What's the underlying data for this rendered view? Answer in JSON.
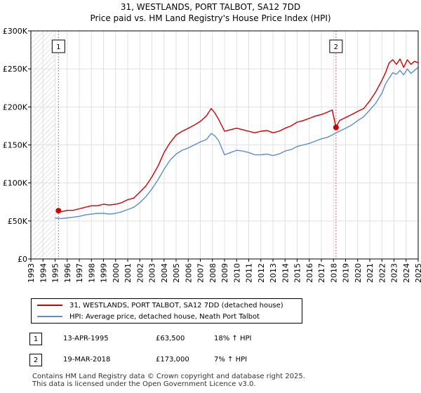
{
  "header": {
    "title_line1": "31, WESTLANDS, PORT TALBOT, SA12 7DD",
    "title_line2": "Price paid vs. HM Land Registry's House Price Index (HPI)"
  },
  "legend": {
    "items": [
      {
        "label": "31, WESTLANDS, PORT TALBOT, SA12 7DD (detached house)",
        "color": "#cc0000"
      },
      {
        "label": "HPI: Average price, detached house, Neath Port Talbot",
        "color": "#5b8dc9"
      }
    ]
  },
  "sales": [
    {
      "num": "1",
      "date": "13-APR-1995",
      "price": "£63,500",
      "hpi": "18% ↑ HPI"
    },
    {
      "num": "2",
      "date": "19-MAR-2018",
      "price": "£173,000",
      "hpi": "7% ↑ HPI"
    }
  ],
  "footer": {
    "line1": "Contains HM Land Registry data © Crown copyright and database right 2025.",
    "line2": "This data is licensed under the Open Government Licence v3.0."
  },
  "chart_data": {
    "type": "line",
    "title": "31, WESTLANDS, PORT TALBOT, SA12 7DD — Price paid vs. HM Land Registry's House Price Index (HPI)",
    "xlim": [
      1993,
      2025
    ],
    "ylim": [
      0,
      300000
    ],
    "x_ticks": [
      "1993",
      "1994",
      "1995",
      "1996",
      "1997",
      "1998",
      "1999",
      "2000",
      "2001",
      "2002",
      "2003",
      "2004",
      "2005",
      "2006",
      "2007",
      "2008",
      "2009",
      "2010",
      "2011",
      "2012",
      "2013",
      "2014",
      "2015",
      "2016",
      "2017",
      "2018",
      "2019",
      "2020",
      "2021",
      "2022",
      "2023",
      "2024",
      "2025"
    ],
    "y_ticks": [
      {
        "value": 0,
        "label": "£0"
      },
      {
        "value": 50000,
        "label": "£50K"
      },
      {
        "value": 100000,
        "label": "£100K"
      },
      {
        "value": 150000,
        "label": "£150K"
      },
      {
        "value": 200000,
        "label": "£200K"
      },
      {
        "value": 250000,
        "label": "£250K"
      },
      {
        "value": 300000,
        "label": "£300K"
      }
    ],
    "hatch_until": 1995.0,
    "grid": true,
    "series": [
      {
        "name": "31, WESTLANDS, PORT TALBOT, SA12 7DD (detached house)",
        "color": "#cc0000",
        "x": [
          1995.28,
          1995.5,
          1996.0,
          1996.5,
          1997.0,
          1997.5,
          1998.0,
          1998.5,
          1999.0,
          1999.5,
          2000.0,
          2000.5,
          2001.0,
          2001.5,
          2002.0,
          2002.5,
          2003.0,
          2003.5,
          2004.0,
          2004.5,
          2005.0,
          2005.5,
          2006.0,
          2006.5,
          2007.0,
          2007.5,
          2007.9,
          2008.2,
          2008.5,
          2009.0,
          2009.5,
          2010.0,
          2010.5,
          2011.0,
          2011.5,
          2012.0,
          2012.5,
          2013.0,
          2013.5,
          2014.0,
          2014.5,
          2015.0,
          2015.5,
          2016.0,
          2016.5,
          2017.0,
          2017.5,
          2017.9,
          2018.21,
          2018.5,
          2019.0,
          2019.5,
          2020.0,
          2020.5,
          2021.0,
          2021.5,
          2022.0,
          2022.3,
          2022.6,
          2022.9,
          2023.2,
          2023.5,
          2023.8,
          2024.1,
          2024.4,
          2024.7,
          2025.0
        ],
        "y": [
          63500,
          62000,
          64000,
          64000,
          66000,
          68000,
          70000,
          70000,
          72000,
          71000,
          72000,
          74000,
          78000,
          80000,
          88000,
          96000,
          108000,
          122000,
          140000,
          153000,
          163000,
          168000,
          172000,
          176000,
          181000,
          188000,
          198000,
          192000,
          184000,
          168000,
          170000,
          172000,
          170000,
          168000,
          166000,
          168000,
          169000,
          166000,
          168000,
          172000,
          175000,
          180000,
          182000,
          185000,
          188000,
          190000,
          193000,
          196000,
          173000,
          182000,
          186000,
          190000,
          194000,
          198000,
          208000,
          220000,
          235000,
          245000,
          258000,
          262000,
          256000,
          263000,
          252000,
          262000,
          256000,
          260000,
          258000
        ]
      },
      {
        "name": "HPI: Average price, detached house, Neath Port Talbot",
        "color": "#5b8dc9",
        "x": [
          1995.0,
          1995.5,
          1996.0,
          1996.5,
          1997.0,
          1997.5,
          1998.0,
          1998.5,
          1999.0,
          1999.5,
          2000.0,
          2000.5,
          2001.0,
          2001.5,
          2002.0,
          2002.5,
          2003.0,
          2003.5,
          2004.0,
          2004.5,
          2005.0,
          2005.5,
          2006.0,
          2006.5,
          2007.0,
          2007.5,
          2007.9,
          2008.2,
          2008.5,
          2009.0,
          2009.5,
          2010.0,
          2010.5,
          2011.0,
          2011.5,
          2012.0,
          2012.5,
          2013.0,
          2013.5,
          2014.0,
          2014.5,
          2015.0,
          2015.5,
          2016.0,
          2016.5,
          2017.0,
          2017.5,
          2018.0,
          2018.5,
          2019.0,
          2019.5,
          2020.0,
          2020.5,
          2021.0,
          2021.5,
          2022.0,
          2022.3,
          2022.6,
          2022.9,
          2023.2,
          2023.5,
          2023.8,
          2024.1,
          2024.4,
          2024.7,
          2025.0
        ],
        "y": [
          54000,
          53000,
          54000,
          55000,
          56000,
          58000,
          59000,
          60000,
          60000,
          59000,
          60000,
          62000,
          65000,
          68000,
          74000,
          82000,
          92000,
          104000,
          118000,
          130000,
          138000,
          143000,
          146000,
          150000,
          154000,
          157000,
          165000,
          162000,
          156000,
          137000,
          140000,
          143000,
          142000,
          140000,
          137000,
          137000,
          138000,
          136000,
          138000,
          142000,
          144000,
          148000,
          150000,
          152000,
          155000,
          158000,
          160000,
          164000,
          168000,
          172000,
          176000,
          182000,
          187000,
          196000,
          205000,
          218000,
          230000,
          238000,
          245000,
          243000,
          248000,
          242000,
          250000,
          244000,
          248000,
          252000
        ]
      }
    ],
    "sale_markers": [
      {
        "label": "1",
        "x": 1995.28,
        "y": 63500
      },
      {
        "label": "2",
        "x": 2018.21,
        "y": 173000
      }
    ]
  }
}
